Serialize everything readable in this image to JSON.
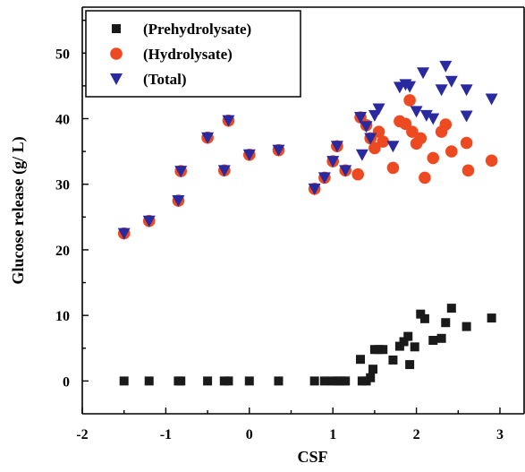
{
  "chart_data": {
    "type": "scatter",
    "title": "",
    "xlabel": "CSF",
    "ylabel": "Glucose release (g/ L)",
    "xlim": [
      -2,
      3.3
    ],
    "ylim": [
      -5,
      57
    ],
    "xticks": [
      -2,
      -1,
      0,
      1,
      2,
      3
    ],
    "yticks": [
      0,
      10,
      20,
      30,
      40,
      50
    ],
    "legend": "top-left",
    "grid": false,
    "series": [
      {
        "name": "(Prehydrolysate)",
        "marker": "square",
        "color": "#1a1a1a",
        "points": [
          [
            -1.5,
            0
          ],
          [
            -1.2,
            0
          ],
          [
            -0.85,
            0
          ],
          [
            -0.82,
            0
          ],
          [
            -0.5,
            0
          ],
          [
            -0.3,
            0
          ],
          [
            -0.25,
            0
          ],
          [
            0,
            0
          ],
          [
            0.35,
            0
          ],
          [
            0.78,
            0
          ],
          [
            0.9,
            0
          ],
          [
            1.0,
            0
          ],
          [
            1.05,
            0
          ],
          [
            1.1,
            0
          ],
          [
            1.15,
            0
          ],
          [
            1.33,
            3.3
          ],
          [
            1.35,
            0
          ],
          [
            1.4,
            0
          ],
          [
            1.45,
            0.5
          ],
          [
            1.48,
            1.8
          ],
          [
            1.5,
            4.8
          ],
          [
            1.55,
            4.8
          ],
          [
            1.6,
            4.8
          ],
          [
            1.72,
            3.2
          ],
          [
            1.8,
            5.3
          ],
          [
            1.85,
            6.0
          ],
          [
            1.9,
            6.8
          ],
          [
            1.92,
            2.5
          ],
          [
            1.98,
            5.2
          ],
          [
            2.05,
            10.2
          ],
          [
            2.1,
            9.5
          ],
          [
            2.2,
            6.2
          ],
          [
            2.3,
            6.5
          ],
          [
            2.35,
            8.9
          ],
          [
            2.42,
            11.1
          ],
          [
            2.6,
            8.3
          ],
          [
            2.9,
            9.6
          ]
        ]
      },
      {
        "name": "(Hydrolysate)",
        "marker": "circle",
        "color": "#ee4a22",
        "points": [
          [
            -1.5,
            22.5
          ],
          [
            -1.2,
            24.4
          ],
          [
            -0.85,
            27.5
          ],
          [
            -0.82,
            32.0
          ],
          [
            -0.5,
            37.1
          ],
          [
            -0.3,
            32.1
          ],
          [
            -0.25,
            39.7
          ],
          [
            0,
            34.5
          ],
          [
            0.35,
            35.2
          ],
          [
            0.78,
            29.3
          ],
          [
            0.9,
            31.0
          ],
          [
            1.0,
            33.5
          ],
          [
            1.05,
            35.8
          ],
          [
            1.15,
            32.1
          ],
          [
            1.3,
            31.5
          ],
          [
            1.33,
            40.2
          ],
          [
            1.4,
            39.0
          ],
          [
            1.45,
            37.0
          ],
          [
            1.5,
            35.5
          ],
          [
            1.55,
            38.0
          ],
          [
            1.6,
            36.5
          ],
          [
            1.72,
            32.5
          ],
          [
            1.8,
            39.6
          ],
          [
            1.87,
            39.2
          ],
          [
            1.92,
            42.8
          ],
          [
            1.95,
            38.0
          ],
          [
            2.0,
            36.2
          ],
          [
            2.05,
            37.0
          ],
          [
            2.1,
            31.0
          ],
          [
            2.2,
            34.0
          ],
          [
            2.3,
            38.0
          ],
          [
            2.35,
            39.1
          ],
          [
            2.42,
            35.0
          ],
          [
            2.6,
            36.3
          ],
          [
            2.62,
            32.1
          ],
          [
            2.9,
            33.6
          ]
        ]
      },
      {
        "name": "(Total)",
        "marker": "triangle-down",
        "color": "#2a2aa0",
        "points": [
          [
            -1.5,
            22.5
          ],
          [
            -1.2,
            24.4
          ],
          [
            -0.85,
            27.5
          ],
          [
            -0.82,
            32.0
          ],
          [
            -0.5,
            37.1
          ],
          [
            -0.3,
            32.1
          ],
          [
            -0.25,
            39.7
          ],
          [
            0,
            34.5
          ],
          [
            0.35,
            35.2
          ],
          [
            0.78,
            29.3
          ],
          [
            0.9,
            31.0
          ],
          [
            1.0,
            33.5
          ],
          [
            1.05,
            35.8
          ],
          [
            1.15,
            32.1
          ],
          [
            1.33,
            40.2
          ],
          [
            1.35,
            34.5
          ],
          [
            1.4,
            38.8
          ],
          [
            1.45,
            37.0
          ],
          [
            1.5,
            40.5
          ],
          [
            1.55,
            41.5
          ],
          [
            1.72,
            35.8
          ],
          [
            1.8,
            44.8
          ],
          [
            1.87,
            45.2
          ],
          [
            1.92,
            44.9
          ],
          [
            2.0,
            41.1
          ],
          [
            2.08,
            47.0
          ],
          [
            2.12,
            40.5
          ],
          [
            2.2,
            40.0
          ],
          [
            2.3,
            44.4
          ],
          [
            2.35,
            48.0
          ],
          [
            2.42,
            45.7
          ],
          [
            2.6,
            44.4
          ],
          [
            2.6,
            40.4
          ],
          [
            2.9,
            43.0
          ]
        ]
      }
    ]
  }
}
